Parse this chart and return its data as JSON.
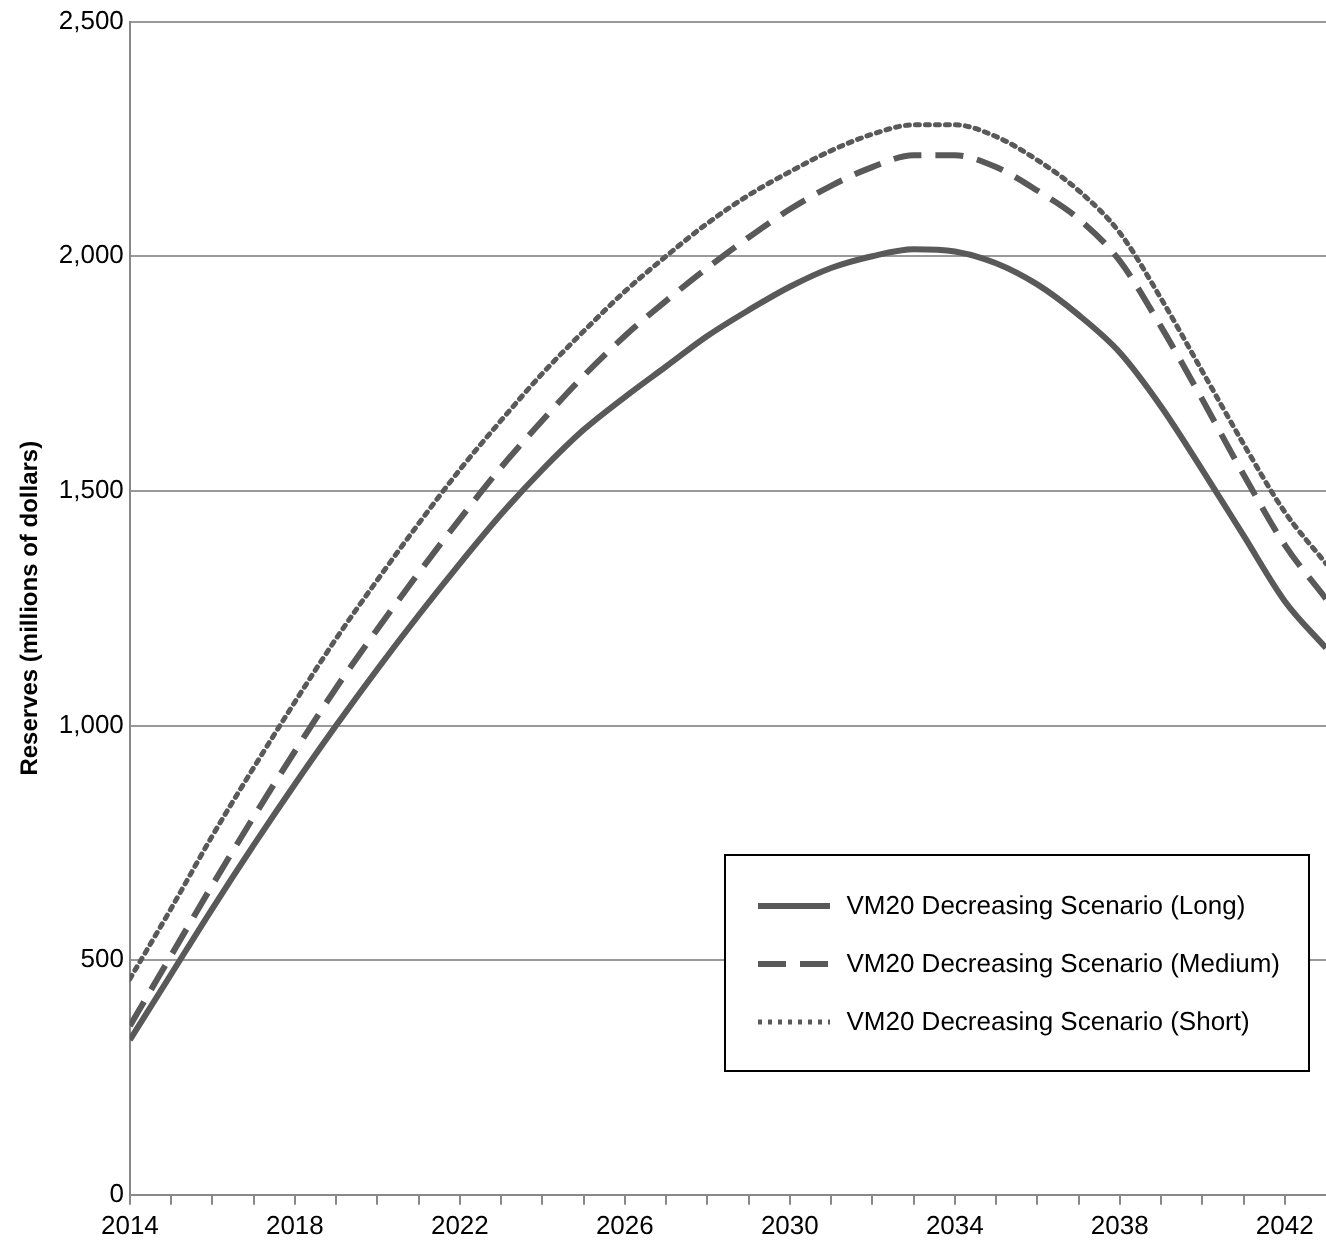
{
  "chart_data": {
    "type": "line",
    "ylabel": "Reserves (millions of dollars)",
    "x": [
      2014,
      2015,
      2016,
      2017,
      2018,
      2019,
      2020,
      2021,
      2022,
      2023,
      2024,
      2025,
      2026,
      2027,
      2028,
      2029,
      2030,
      2031,
      2032,
      2033,
      2034,
      2035,
      2036,
      2037,
      2038,
      2039,
      2040,
      2041,
      2042,
      2043
    ],
    "xlim": [
      2014,
      2043
    ],
    "xticks": [
      2014,
      {
        "value": 2015,
        "label": null
      },
      {
        "value": 2016,
        "label": null
      },
      {
        "value": 2017,
        "label": null
      },
      2018,
      {
        "value": 2019,
        "label": null
      },
      {
        "value": 2020,
        "label": null
      },
      {
        "value": 2021,
        "label": null
      },
      2022,
      {
        "value": 2023,
        "label": null
      },
      {
        "value": 2024,
        "label": null
      },
      {
        "value": 2025,
        "label": null
      },
      2026,
      {
        "value": 2027,
        "label": null
      },
      {
        "value": 2028,
        "label": null
      },
      {
        "value": 2029,
        "label": null
      },
      2030,
      {
        "value": 2031,
        "label": null
      },
      {
        "value": 2032,
        "label": null
      },
      {
        "value": 2033,
        "label": null
      },
      2034,
      {
        "value": 2035,
        "label": null
      },
      {
        "value": 2036,
        "label": null
      },
      {
        "value": 2037,
        "label": null
      },
      2038,
      {
        "value": 2039,
        "label": null
      },
      {
        "value": 2040,
        "label": null
      },
      {
        "value": 2041,
        "label": null
      },
      2042
    ],
    "ylim": [
      0,
      2500
    ],
    "yticks": [
      0,
      {
        "value": 500,
        "label": "500"
      },
      {
        "value": 1000,
        "label": "1,000"
      },
      {
        "value": 1500,
        "label": "1,500"
      },
      {
        "value": 2000,
        "label": "2,000"
      },
      {
        "value": 2500,
        "label": "2,500"
      }
    ],
    "grid": "y",
    "legend": "bottom right",
    "marker": "none",
    "series": [
      {
        "name": "VM20 Decreasing Scenario (Long)",
        "color": "#595959",
        "line_style": "solid",
        "values": [
          330,
          470,
          610,
          745,
          875,
          1000,
          1120,
          1235,
          1345,
          1450,
          1545,
          1630,
          1700,
          1765,
          1830,
          1885,
          1935,
          1975,
          2000,
          2015,
          2010,
          1985,
          1940,
          1875,
          1795,
          1680,
          1545,
          1405,
          1265,
          1165
        ]
      },
      {
        "name": "VM20 Decreasing Scenario (Medium)",
        "color": "#595959",
        "line_style": "dashed",
        "values": [
          360,
          510,
          660,
          805,
          945,
          1080,
          1205,
          1325,
          1440,
          1550,
          1650,
          1745,
          1830,
          1905,
          1975,
          2040,
          2100,
          2150,
          2190,
          2215,
          2215,
          2190,
          2140,
          2080,
          1990,
          1850,
          1695,
          1535,
          1385,
          1270
        ]
      },
      {
        "name": "VM20 Decreasing Scenario (Short)",
        "color": "#595959",
        "line_style": "dotted",
        "values": [
          460,
          610,
          765,
          910,
          1050,
          1185,
          1310,
          1430,
          1545,
          1650,
          1750,
          1840,
          1925,
          2000,
          2070,
          2130,
          2180,
          2225,
          2260,
          2280,
          2280,
          2255,
          2205,
          2140,
          2050,
          1910,
          1755,
          1600,
          1455,
          1345
        ]
      }
    ]
  }
}
